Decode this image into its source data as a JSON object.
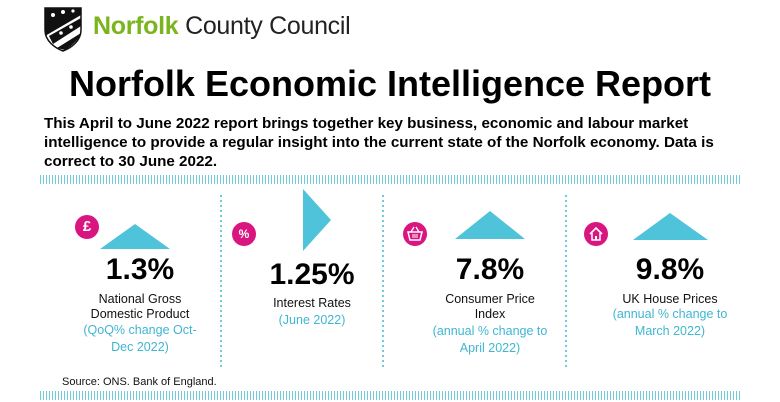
{
  "header": {
    "org_name_part1": "Norfolk",
    "org_name_part2": "County Council",
    "logo": "norfolk-county-council-crest"
  },
  "title": "Norfolk Economic Intelligence Report",
  "intro": "This April to June 2022 report brings together key business, economic and labour market intelligence to provide a regular insight into the current state of the Norfolk economy. Data is correct to 30 June 2022.",
  "indicators": [
    {
      "icon": "pound-sign-icon",
      "icon_text": "£",
      "trend": "up",
      "value": "1.3%",
      "label_lines": [
        "National Gross",
        "Domestic Product"
      ],
      "sub_lines": [
        "(QoQ% change Oct-",
        "Dec 2022)"
      ]
    },
    {
      "icon": "percent-icon",
      "icon_text": "%",
      "trend": "right",
      "value": "1.25%",
      "label_lines": [
        "Interest Rates"
      ],
      "sub_lines": [
        "(June 2022)"
      ]
    },
    {
      "icon": "shopping-basket-icon",
      "trend": "up",
      "value": "7.8%",
      "label_lines": [
        "Consumer Price",
        "Index"
      ],
      "sub_lines": [
        "(annual % change to",
        "April 2022)"
      ]
    },
    {
      "icon": "house-icon",
      "trend": "up",
      "value": "9.8%",
      "label_lines": [
        "UK House Prices"
      ],
      "sub_lines": [
        "(annual % change to",
        "March 2022)"
      ]
    }
  ],
  "source": "Source: ONS. Bank of England.",
  "colors": {
    "brand_green": "#7ab51d",
    "accent_teal": "#4fc3d9",
    "icon_magenta": "#d9157f",
    "sub_text": "#3fb6d2"
  }
}
